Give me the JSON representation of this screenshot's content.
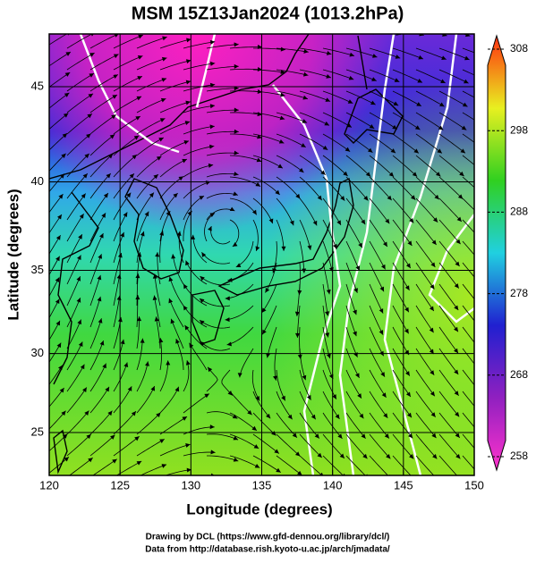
{
  "chart_data": {
    "type": "map",
    "title": "MSM 15Z13Jan2024 (1013.2hPa)",
    "x_label": "Longitude (degrees)",
    "y_label": "Latitude  (degrees)",
    "projection": "mercator",
    "xlim": [
      120,
      150
    ],
    "xticks": [
      120,
      125,
      130,
      135,
      140,
      145,
      150
    ],
    "ylim": [
      22.2,
      47.6
    ],
    "yticks": [
      25,
      30,
      35,
      40,
      45
    ],
    "grid": true,
    "colorbar": {
      "lim": [
        258,
        308
      ],
      "ticks": [
        258,
        268,
        278,
        288,
        298,
        308
      ],
      "colors": [
        "#ff33cc",
        "#9020c0",
        "#2020d0",
        "#20d0e0",
        "#30d020",
        "#e8f020",
        "#ff3010"
      ]
    },
    "credits": [
      "Drawing by DCL (https://www.gfd-dennou.org/library/dcl/)",
      "Data from http://database.rish.kyoto-u.ac.jp/arch/jmadata/"
    ]
  }
}
